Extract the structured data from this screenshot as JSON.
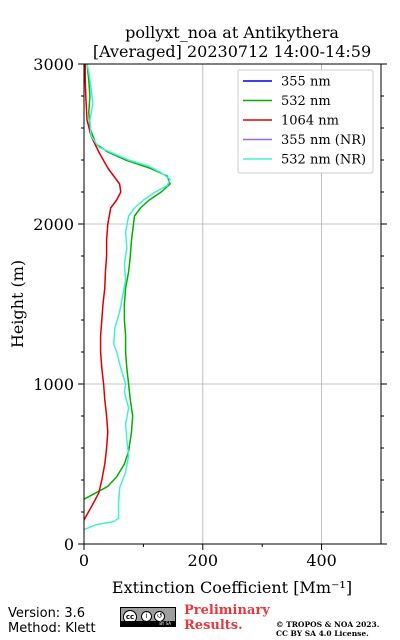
{
  "chart_data": {
    "type": "line",
    "title": "pollyxt_noa at Antikythera",
    "subtitle": "[Averaged] 20230712 14:00-14:59",
    "xlabel": "Extinction Coefficient [Mm⁻¹]",
    "ylabel": "Height (m)",
    "xlim": [
      0,
      500
    ],
    "ylim": [
      0,
      3000
    ],
    "x_ticks": [
      "0",
      "200",
      "400"
    ],
    "y_ticks": [
      "0",
      "1000",
      "2000",
      "3000"
    ],
    "grid": true,
    "legend_position": "top-right",
    "series": [
      {
        "name": "355 nm",
        "color": "#0000ee",
        "points": []
      },
      {
        "name": "532 nm",
        "color": "#00b000",
        "points": [
          [
            0,
            280
          ],
          [
            20,
            320
          ],
          [
            40,
            360
          ],
          [
            55,
            420
          ],
          [
            68,
            500
          ],
          [
            75,
            580
          ],
          [
            80,
            700
          ],
          [
            82,
            800
          ],
          [
            78,
            900
          ],
          [
            75,
            1000
          ],
          [
            72,
            1100
          ],
          [
            70,
            1200
          ],
          [
            70,
            1300
          ],
          [
            68,
            1400
          ],
          [
            68,
            1500
          ],
          [
            70,
            1600
          ],
          [
            75,
            1700
          ],
          [
            78,
            1800
          ],
          [
            80,
            1900
          ],
          [
            85,
            2050
          ],
          [
            95,
            2100
          ],
          [
            110,
            2150
          ],
          [
            130,
            2200
          ],
          [
            145,
            2250
          ],
          [
            140,
            2300
          ],
          [
            110,
            2350
          ],
          [
            70,
            2400
          ],
          [
            40,
            2450
          ],
          [
            20,
            2500
          ],
          [
            10,
            2600
          ],
          [
            8,
            2700
          ],
          [
            10,
            2800
          ],
          [
            8,
            2900
          ],
          [
            5,
            3000
          ]
        ]
      },
      {
        "name": "1064 nm",
        "color": "#dd0000",
        "points": [
          [
            0,
            150
          ],
          [
            15,
            250
          ],
          [
            25,
            320
          ],
          [
            30,
            400
          ],
          [
            35,
            500
          ],
          [
            38,
            600
          ],
          [
            40,
            700
          ],
          [
            38,
            800
          ],
          [
            35,
            900
          ],
          [
            33,
            1000
          ],
          [
            30,
            1100
          ],
          [
            28,
            1200
          ],
          [
            28,
            1300
          ],
          [
            30,
            1400
          ],
          [
            32,
            1500
          ],
          [
            35,
            1600
          ],
          [
            36,
            1700
          ],
          [
            38,
            1800
          ],
          [
            38,
            1900
          ],
          [
            40,
            2000
          ],
          [
            45,
            2100
          ],
          [
            55,
            2150
          ],
          [
            62,
            2200
          ],
          [
            60,
            2250
          ],
          [
            50,
            2300
          ],
          [
            40,
            2350
          ],
          [
            25,
            2450
          ],
          [
            12,
            2550
          ],
          [
            5,
            2650
          ],
          [
            3,
            2800
          ],
          [
            2,
            2900
          ],
          [
            2,
            3000
          ]
        ]
      },
      {
        "name": "355 nm (NR)",
        "color": "#9966ee",
        "points": []
      },
      {
        "name": "532 nm (NR)",
        "color": "#44f0d0",
        "points": [
          [
            0,
            90
          ],
          [
            20,
            120
          ],
          [
            50,
            140
          ],
          [
            58,
            160
          ],
          [
            58,
            250
          ],
          [
            60,
            350
          ],
          [
            70,
            450
          ],
          [
            75,
            550
          ],
          [
            72,
            650
          ],
          [
            70,
            750
          ],
          [
            75,
            850
          ],
          [
            68,
            950
          ],
          [
            70,
            1000
          ],
          [
            62,
            1100
          ],
          [
            55,
            1200
          ],
          [
            50,
            1250
          ],
          [
            52,
            1350
          ],
          [
            60,
            1450
          ],
          [
            65,
            1550
          ],
          [
            70,
            1650
          ],
          [
            68,
            1750
          ],
          [
            72,
            1850
          ],
          [
            70,
            1950
          ],
          [
            75,
            2050
          ],
          [
            85,
            2100
          ],
          [
            100,
            2150
          ],
          [
            120,
            2200
          ],
          [
            140,
            2240
          ],
          [
            145,
            2280
          ],
          [
            130,
            2320
          ],
          [
            110,
            2360
          ],
          [
            75,
            2400
          ],
          [
            50,
            2440
          ],
          [
            25,
            2480
          ],
          [
            12,
            2550
          ],
          [
            10,
            2650
          ],
          [
            15,
            2750
          ],
          [
            12,
            2850
          ],
          [
            8,
            2950
          ],
          [
            5,
            3000
          ]
        ]
      }
    ]
  },
  "footer": {
    "version": "Version: 3.6",
    "method": "Method: Klett",
    "preliminary_line1": "Preliminary",
    "preliminary_line2": "Results.",
    "copyright_line1": "© TROPOS & NOA 2023.",
    "copyright_line2": "CC BY SA 4.0 License.",
    "cc_badge_text": "BY SA"
  }
}
